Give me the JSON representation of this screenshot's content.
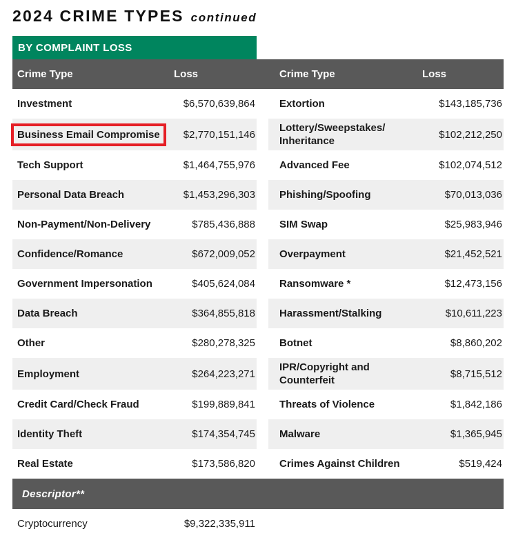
{
  "page": {
    "title": "2024 CRIME TYPES",
    "title_suffix": "continued",
    "section_label": "BY COMPLAINT LOSS"
  },
  "table": {
    "column_headers": {
      "crime_type": "Crime Type",
      "loss": "Loss"
    },
    "rows": [
      {
        "left": {
          "crime_type": "Investment",
          "loss": "$6,570,639,864"
        },
        "right": {
          "crime_type": "Extortion",
          "loss": "$143,185,736"
        }
      },
      {
        "left": {
          "crime_type": "Business Email Compromise",
          "loss": "$2,770,151,146",
          "highlighted": true
        },
        "right": {
          "crime_type": "Lottery/Sweepstakes/\nInheritance",
          "loss": "$102,212,250"
        }
      },
      {
        "left": {
          "crime_type": "Tech Support",
          "loss": "$1,464,755,976"
        },
        "right": {
          "crime_type": "Advanced Fee",
          "loss": "$102,074,512"
        }
      },
      {
        "left": {
          "crime_type": "Personal Data Breach",
          "loss": "$1,453,296,303"
        },
        "right": {
          "crime_type": "Phishing/Spoofing",
          "loss": "$70,013,036"
        }
      },
      {
        "left": {
          "crime_type": "Non-Payment/Non-Delivery",
          "loss": "$785,436,888"
        },
        "right": {
          "crime_type": "SIM Swap",
          "loss": "$25,983,946"
        }
      },
      {
        "left": {
          "crime_type": "Confidence/Romance",
          "loss": "$672,009,052"
        },
        "right": {
          "crime_type": "Overpayment",
          "loss": "$21,452,521"
        }
      },
      {
        "left": {
          "crime_type": "Government Impersonation",
          "loss": "$405,624,084"
        },
        "right": {
          "crime_type": "Ransomware *",
          "loss": "$12,473,156"
        }
      },
      {
        "left": {
          "crime_type": "Data Breach",
          "loss": "$364,855,818"
        },
        "right": {
          "crime_type": "Harassment/Stalking",
          "loss": "$10,611,223"
        }
      },
      {
        "left": {
          "crime_type": "Other",
          "loss": "$280,278,325"
        },
        "right": {
          "crime_type": "Botnet",
          "loss": "$8,860,202"
        }
      },
      {
        "left": {
          "crime_type": "Employment",
          "loss": "$264,223,271"
        },
        "right": {
          "crime_type": "IPR/Copyright and\nCounterfeit",
          "loss": "$8,715,512"
        }
      },
      {
        "left": {
          "crime_type": "Credit Card/Check Fraud",
          "loss": "$199,889,841"
        },
        "right": {
          "crime_type": "Threats of Violence",
          "loss": "$1,842,186"
        }
      },
      {
        "left": {
          "crime_type": "Identity Theft",
          "loss": "$174,354,745"
        },
        "right": {
          "crime_type": "Malware",
          "loss": "$1,365,945"
        }
      },
      {
        "left": {
          "crime_type": "Real Estate",
          "loss": "$173,586,820"
        },
        "right": {
          "crime_type": "Crimes Against Children",
          "loss": "$519,424"
        }
      }
    ],
    "descriptor_label": "Descriptor**",
    "descriptor_rows": [
      {
        "left": {
          "crime_type": "Cryptocurrency",
          "loss": "$9,322,335,911"
        }
      }
    ]
  },
  "annotations": {
    "highlighted_cell": "Business Email Compromise",
    "highlight_box_color": "#E51E25"
  },
  "colors": {
    "accent_green": "#00855E",
    "header_gray": "#595959",
    "row_alt_gray": "#EFEFEF"
  }
}
